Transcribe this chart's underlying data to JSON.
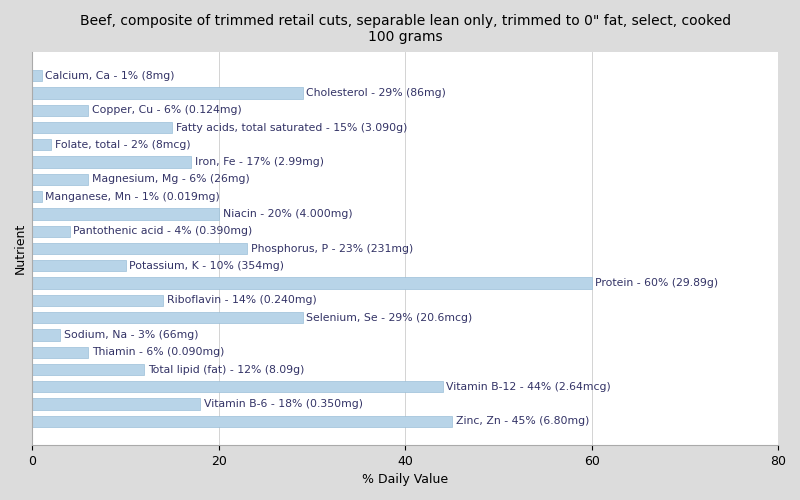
{
  "title": "Beef, composite of trimmed retail cuts, separable lean only, trimmed to 0\" fat, select, cooked\n100 grams",
  "xlabel": "% Daily Value",
  "ylabel": "Nutrient",
  "xlim": [
    0,
    80
  ],
  "xticks": [
    0,
    20,
    40,
    60,
    80
  ],
  "background_color": "#dcdcdc",
  "plot_bg_color": "#ffffff",
  "bar_color": "#b8d4e8",
  "bar_edge_color": "#9bbfd8",
  "nutrients": [
    "Calcium, Ca - 1% (8mg)",
    "Cholesterol - 29% (86mg)",
    "Copper, Cu - 6% (0.124mg)",
    "Fatty acids, total saturated - 15% (3.090g)",
    "Folate, total - 2% (8mcg)",
    "Iron, Fe - 17% (2.99mg)",
    "Magnesium, Mg - 6% (26mg)",
    "Manganese, Mn - 1% (0.019mg)",
    "Niacin - 20% (4.000mg)",
    "Pantothenic acid - 4% (0.390mg)",
    "Phosphorus, P - 23% (231mg)",
    "Potassium, K - 10% (354mg)",
    "Protein - 60% (29.89g)",
    "Riboflavin - 14% (0.240mg)",
    "Selenium, Se - 29% (20.6mcg)",
    "Sodium, Na - 3% (66mg)",
    "Thiamin - 6% (0.090mg)",
    "Total lipid (fat) - 12% (8.09g)",
    "Vitamin B-12 - 44% (2.64mcg)",
    "Vitamin B-6 - 18% (0.350mg)",
    "Zinc, Zn - 45% (6.80mg)"
  ],
  "values": [
    1,
    29,
    6,
    15,
    2,
    17,
    6,
    1,
    20,
    4,
    23,
    10,
    60,
    14,
    29,
    3,
    6,
    12,
    44,
    18,
    45
  ],
  "label_color": "#333366",
  "label_fontsize": 7.8,
  "title_fontsize": 10,
  "axis_label_fontsize": 9,
  "bar_height": 0.65
}
